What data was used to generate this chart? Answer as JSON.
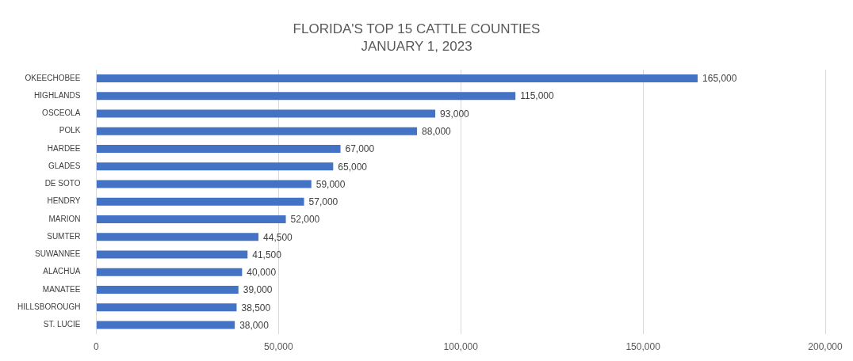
{
  "chart_data": {
    "type": "bar",
    "orientation": "horizontal",
    "title": "FLORIDA'S TOP 15 CATTLE COUNTIES",
    "subtitle": "JANUARY 1, 2023",
    "categories": [
      "OKEECHOBEE",
      "HIGHLANDS",
      "OSCEOLA",
      "POLK",
      "HARDEE",
      "GLADES",
      "DE SOTO",
      "HENDRY",
      "MARION",
      "SUMTER",
      "SUWANNEE",
      "ALACHUA",
      "MANATEE",
      "HILLSBOROUGH",
      "ST. LUCIE"
    ],
    "values": [
      165000,
      115000,
      93000,
      88000,
      67000,
      65000,
      59000,
      57000,
      52000,
      44500,
      41500,
      40000,
      39000,
      38500,
      38000
    ],
    "color": "#4472c4",
    "xlim": [
      0,
      200000
    ],
    "xticks": [
      {
        "value": 0,
        "label": "0"
      },
      {
        "value": 50000,
        "label": "50,000"
      },
      {
        "value": 100000,
        "label": "100,000"
      },
      {
        "value": 150000,
        "label": "150,000"
      },
      {
        "value": 200000,
        "label": "200,000"
      }
    ],
    "value_labels": [
      "165,000",
      "115,000",
      "93,000",
      "88,000",
      "67,000",
      "65,000",
      "59,000",
      "57,000",
      "52,000",
      "44,500",
      "41,500",
      "40,000",
      "39,000",
      "38,500",
      "38,000"
    ],
    "grid": "x",
    "legend": false
  }
}
